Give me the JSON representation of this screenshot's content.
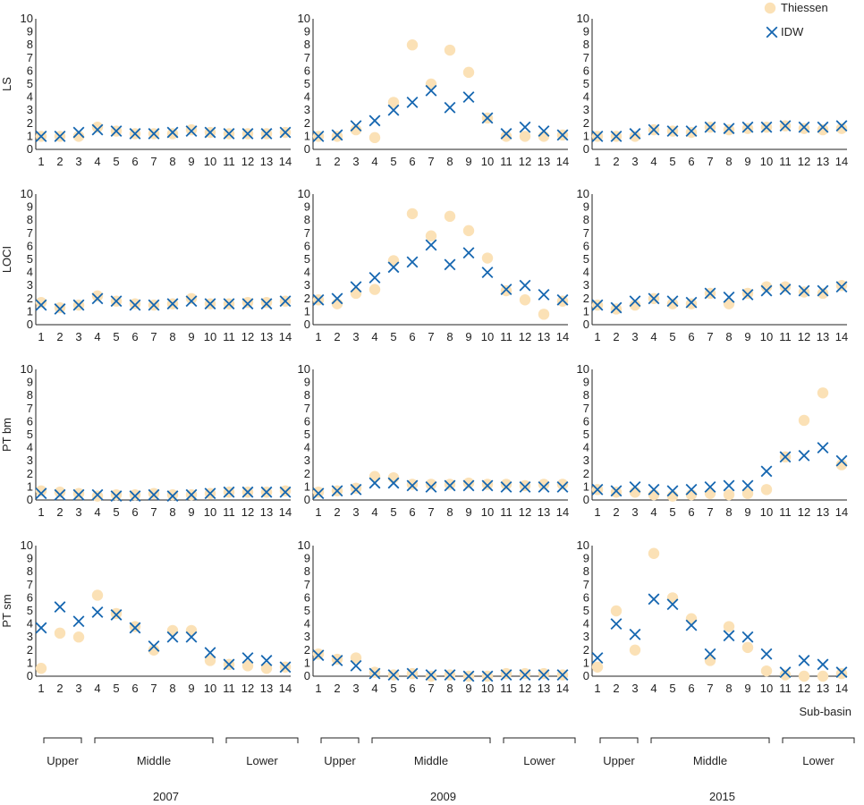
{
  "figure": {
    "x_axis_label": "Sub-basin",
    "years": [
      "2007",
      "2009",
      "2015"
    ],
    "groups": [
      {
        "label": "Upper",
        "from": 1,
        "to": 3
      },
      {
        "label": "Middle",
        "from": 4,
        "to": 10
      },
      {
        "label": "Lower",
        "from": 11,
        "to": 14
      }
    ],
    "colors": {
      "thiessen": "#fbe1b6",
      "idw": "#1566b0",
      "axis": "#222222"
    }
  },
  "chart_data": [
    {
      "type": "scatter",
      "row_label": "LS",
      "year": "2007",
      "x": [
        1,
        2,
        3,
        4,
        5,
        6,
        7,
        8,
        9,
        10,
        11,
        12,
        13,
        14
      ],
      "xlim": [
        1,
        14
      ],
      "ylim": [
        0,
        10
      ],
      "legend": {
        "show": true,
        "placement": "top-right"
      },
      "series": [
        {
          "name": "Thiessen",
          "marker": "circle",
          "values": [
            1.0,
            1.0,
            1.0,
            1.7,
            1.4,
            1.2,
            1.2,
            1.2,
            1.5,
            1.3,
            1.2,
            1.2,
            1.2,
            1.3
          ]
        },
        {
          "name": "IDW",
          "marker": "x",
          "values": [
            1.0,
            1.0,
            1.3,
            1.5,
            1.4,
            1.2,
            1.2,
            1.3,
            1.4,
            1.3,
            1.2,
            1.2,
            1.2,
            1.3
          ]
        }
      ]
    },
    {
      "type": "scatter",
      "row_label": "LS",
      "year": "2009",
      "x": [
        1,
        2,
        3,
        4,
        5,
        6,
        7,
        8,
        9,
        10,
        11,
        12,
        13,
        14
      ],
      "xlim": [
        1,
        14
      ],
      "ylim": [
        0,
        10
      ],
      "series": [
        {
          "name": "Thiessen",
          "marker": "circle",
          "values": [
            1.0,
            1.0,
            1.5,
            0.9,
            3.6,
            8.0,
            5.0,
            7.6,
            5.9,
            2.4,
            1.0,
            1.0,
            1.0,
            1.1
          ]
        },
        {
          "name": "IDW",
          "marker": "x",
          "values": [
            1.0,
            1.1,
            1.8,
            2.2,
            3.0,
            3.6,
            4.5,
            3.2,
            4.0,
            2.4,
            1.2,
            1.7,
            1.4,
            1.1
          ]
        }
      ]
    },
    {
      "type": "scatter",
      "row_label": "LS",
      "year": "2015",
      "x": [
        1,
        2,
        3,
        4,
        5,
        6,
        7,
        8,
        9,
        10,
        11,
        12,
        13,
        14
      ],
      "xlim": [
        1,
        14
      ],
      "ylim": [
        0,
        10
      ],
      "series": [
        {
          "name": "Thiessen",
          "marker": "circle",
          "values": [
            1.0,
            1.0,
            1.0,
            1.5,
            1.4,
            1.3,
            1.7,
            1.5,
            1.6,
            1.7,
            1.8,
            1.6,
            1.5,
            1.6
          ]
        },
        {
          "name": "IDW",
          "marker": "x",
          "values": [
            1.0,
            1.0,
            1.2,
            1.5,
            1.4,
            1.4,
            1.7,
            1.6,
            1.7,
            1.7,
            1.8,
            1.7,
            1.7,
            1.8
          ]
        }
      ]
    },
    {
      "type": "scatter",
      "row_label": "LOCI",
      "year": "2007",
      "x": [
        1,
        2,
        3,
        4,
        5,
        6,
        7,
        8,
        9,
        10,
        11,
        12,
        13,
        14
      ],
      "xlim": [
        1,
        14
      ],
      "ylim": [
        0,
        10
      ],
      "series": [
        {
          "name": "Thiessen",
          "marker": "circle",
          "values": [
            1.7,
            1.3,
            1.5,
            2.2,
            1.8,
            1.6,
            1.5,
            1.6,
            2.0,
            1.6,
            1.6,
            1.7,
            1.7,
            1.8
          ]
        },
        {
          "name": "IDW",
          "marker": "x",
          "values": [
            1.5,
            1.2,
            1.5,
            2.0,
            1.8,
            1.5,
            1.5,
            1.6,
            1.8,
            1.6,
            1.6,
            1.6,
            1.6,
            1.8
          ]
        }
      ]
    },
    {
      "type": "scatter",
      "row_label": "LOCI",
      "year": "2009",
      "x": [
        1,
        2,
        3,
        4,
        5,
        6,
        7,
        8,
        9,
        10,
        11,
        12,
        13,
        14
      ],
      "xlim": [
        1,
        14
      ],
      "ylim": [
        0,
        10
      ],
      "series": [
        {
          "name": "Thiessen",
          "marker": "circle",
          "values": [
            1.9,
            1.6,
            2.4,
            2.7,
            4.9,
            8.5,
            6.8,
            8.3,
            7.2,
            5.1,
            2.6,
            1.9,
            0.8,
            1.8
          ]
        },
        {
          "name": "IDW",
          "marker": "x",
          "values": [
            1.9,
            2.0,
            2.9,
            3.6,
            4.4,
            4.8,
            6.1,
            4.6,
            5.5,
            4.0,
            2.7,
            3.0,
            2.3,
            1.9
          ]
        }
      ]
    },
    {
      "type": "scatter",
      "row_label": "LOCI",
      "year": "2015",
      "x": [
        1,
        2,
        3,
        4,
        5,
        6,
        7,
        8,
        9,
        10,
        11,
        12,
        13,
        14
      ],
      "xlim": [
        1,
        14
      ],
      "ylim": [
        0,
        10
      ],
      "series": [
        {
          "name": "Thiessen",
          "marker": "circle",
          "values": [
            1.5,
            1.2,
            1.5,
            2.0,
            1.6,
            1.6,
            2.4,
            1.6,
            2.4,
            2.9,
            2.9,
            2.5,
            2.4,
            3.0
          ]
        },
        {
          "name": "IDW",
          "marker": "x",
          "values": [
            1.5,
            1.3,
            1.8,
            2.0,
            1.8,
            1.7,
            2.4,
            2.1,
            2.3,
            2.6,
            2.7,
            2.6,
            2.6,
            2.9
          ]
        }
      ]
    },
    {
      "type": "scatter",
      "row_label": "PT bm",
      "year": "2007",
      "x": [
        1,
        2,
        3,
        4,
        5,
        6,
        7,
        8,
        9,
        10,
        11,
        12,
        13,
        14
      ],
      "xlim": [
        1,
        14
      ],
      "ylim": [
        0,
        10
      ],
      "series": [
        {
          "name": "Thiessen",
          "marker": "circle",
          "values": [
            0.7,
            0.6,
            0.5,
            0.3,
            0.4,
            0.4,
            0.5,
            0.4,
            0.4,
            0.5,
            0.6,
            0.6,
            0.6,
            0.7
          ]
        },
        {
          "name": "IDW",
          "marker": "x",
          "values": [
            0.5,
            0.4,
            0.4,
            0.4,
            0.3,
            0.3,
            0.4,
            0.3,
            0.4,
            0.5,
            0.6,
            0.6,
            0.6,
            0.6
          ]
        }
      ]
    },
    {
      "type": "scatter",
      "row_label": "PT bm",
      "year": "2009",
      "x": [
        1,
        2,
        3,
        4,
        5,
        6,
        7,
        8,
        9,
        10,
        11,
        12,
        13,
        14
      ],
      "xlim": [
        1,
        14
      ],
      "ylim": [
        0,
        10
      ],
      "series": [
        {
          "name": "Thiessen",
          "marker": "circle",
          "values": [
            0.6,
            0.7,
            0.9,
            1.8,
            1.7,
            1.2,
            1.2,
            1.2,
            1.3,
            1.2,
            1.2,
            1.1,
            1.2,
            1.2
          ]
        },
        {
          "name": "IDW",
          "marker": "x",
          "values": [
            0.5,
            0.7,
            0.8,
            1.3,
            1.3,
            1.1,
            1.0,
            1.1,
            1.1,
            1.1,
            1.0,
            1.0,
            1.0,
            1.0
          ]
        }
      ]
    },
    {
      "type": "scatter",
      "row_label": "PT bm",
      "year": "2015",
      "x": [
        1,
        2,
        3,
        4,
        5,
        6,
        7,
        8,
        9,
        10,
        11,
        12,
        13,
        14
      ],
      "xlim": [
        1,
        14
      ],
      "ylim": [
        0,
        10
      ],
      "series": [
        {
          "name": "Thiessen",
          "marker": "circle",
          "values": [
            0.8,
            0.6,
            0.6,
            0.4,
            0.3,
            0.4,
            0.5,
            0.4,
            0.5,
            0.8,
            3.3,
            6.1,
            8.2,
            2.7
          ]
        },
        {
          "name": "IDW",
          "marker": "x",
          "values": [
            0.8,
            0.7,
            1.0,
            0.8,
            0.7,
            0.8,
            1.0,
            1.1,
            1.1,
            2.2,
            3.3,
            3.4,
            4.0,
            3.0
          ]
        }
      ]
    },
    {
      "type": "scatter",
      "row_label": "PT sm",
      "year": "2007",
      "x": [
        1,
        2,
        3,
        4,
        5,
        6,
        7,
        8,
        9,
        10,
        11,
        12,
        13,
        14
      ],
      "xlim": [
        1,
        14
      ],
      "ylim": [
        0,
        10
      ],
      "series": [
        {
          "name": "Thiessen",
          "marker": "circle",
          "values": [
            0.6,
            3.3,
            3.0,
            6.2,
            4.8,
            3.8,
            2.0,
            3.5,
            3.5,
            1.2,
            0.9,
            0.8,
            0.6,
            0.7
          ]
        },
        {
          "name": "IDW",
          "marker": "x",
          "values": [
            3.7,
            5.3,
            4.2,
            4.9,
            4.7,
            3.7,
            2.3,
            3.0,
            3.0,
            1.8,
            0.9,
            1.4,
            1.2,
            0.7
          ]
        }
      ]
    },
    {
      "type": "scatter",
      "row_label": "PT sm",
      "year": "2009",
      "x": [
        1,
        2,
        3,
        4,
        5,
        6,
        7,
        8,
        9,
        10,
        11,
        12,
        13,
        14
      ],
      "xlim": [
        1,
        14
      ],
      "ylim": [
        0,
        10
      ],
      "series": [
        {
          "name": "Thiessen",
          "marker": "circle",
          "values": [
            1.7,
            1.3,
            1.4,
            0.3,
            0.1,
            0.2,
            0.0,
            0.1,
            0.0,
            0.0,
            0.2,
            0.2,
            0.2,
            0.1
          ]
        },
        {
          "name": "IDW",
          "marker": "x",
          "values": [
            1.6,
            1.2,
            0.8,
            0.2,
            0.1,
            0.2,
            0.1,
            0.1,
            0.0,
            0.0,
            0.1,
            0.1,
            0.1,
            0.1
          ]
        }
      ]
    },
    {
      "type": "scatter",
      "row_label": "PT sm",
      "year": "2015",
      "x": [
        1,
        2,
        3,
        4,
        5,
        6,
        7,
        8,
        9,
        10,
        11,
        12,
        13,
        14
      ],
      "xlim": [
        1,
        14
      ],
      "ylim": [
        0,
        10
      ],
      "series": [
        {
          "name": "Thiessen",
          "marker": "circle",
          "values": [
            0.7,
            5.0,
            2.0,
            9.4,
            6.0,
            4.4,
            1.2,
            3.8,
            2.2,
            0.4,
            0.1,
            0.0,
            0.0,
            0.2
          ]
        },
        {
          "name": "IDW",
          "marker": "x",
          "values": [
            1.4,
            4.0,
            3.2,
            5.9,
            5.5,
            3.9,
            1.7,
            3.1,
            3.0,
            1.7,
            0.3,
            1.2,
            0.9,
            0.3
          ]
        }
      ]
    }
  ]
}
